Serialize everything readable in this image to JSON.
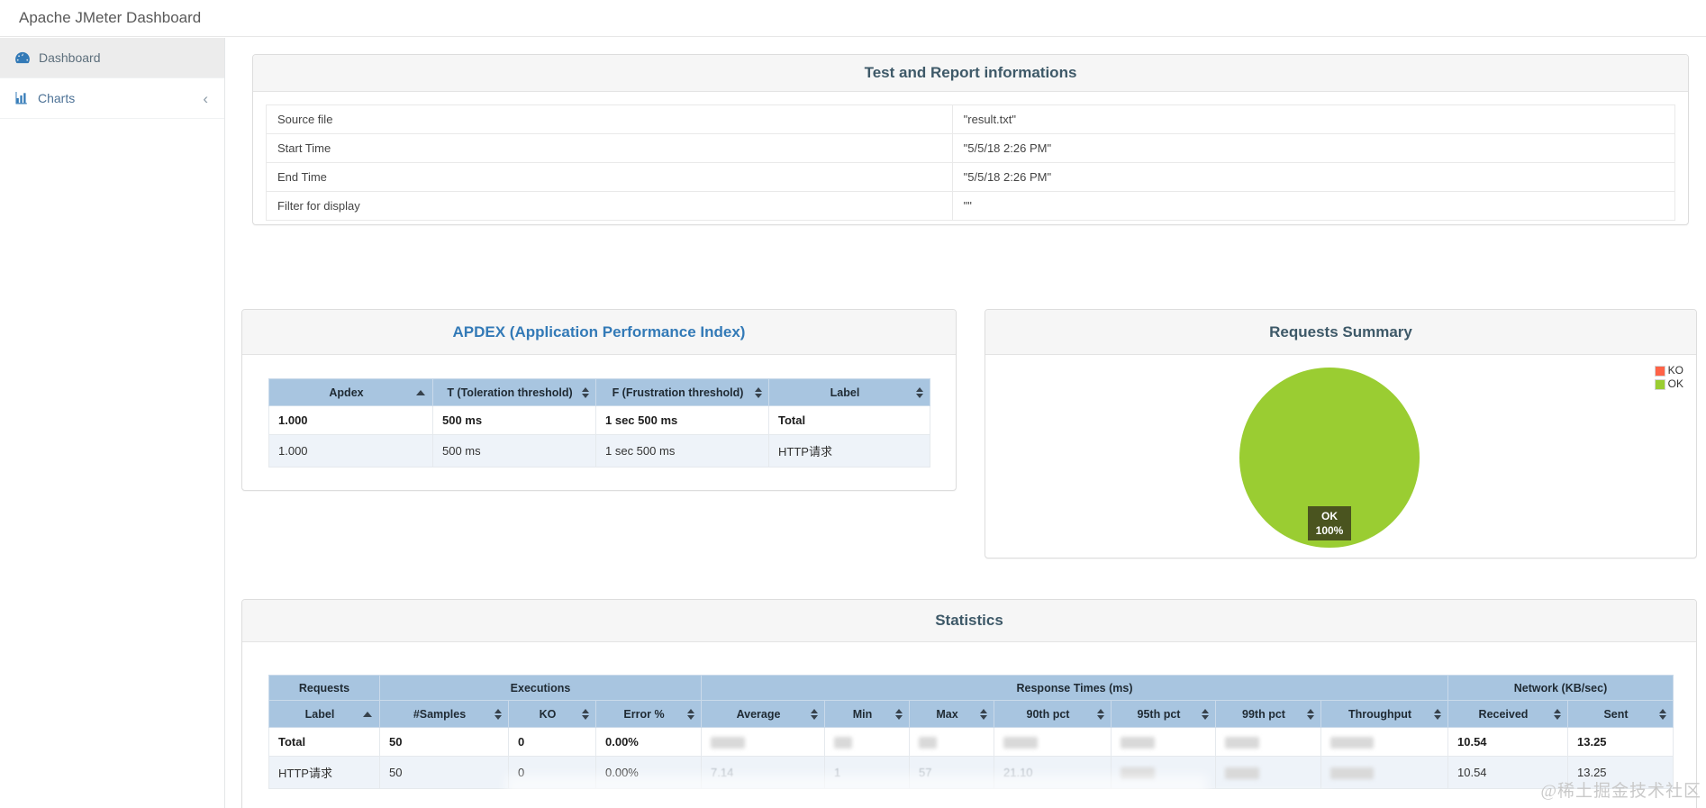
{
  "window": {
    "title": "Apache JMeter Dashboard"
  },
  "sidebar": {
    "items": [
      {
        "label": "Dashboard",
        "icon": "gauge-icon",
        "active": true
      },
      {
        "label": "Charts",
        "icon": "bar-chart-icon",
        "active": false,
        "collapse": "‹"
      }
    ]
  },
  "info_panel": {
    "title": "Test and Report informations",
    "rows": [
      {
        "label": "Source file",
        "value": "\"result.txt\""
      },
      {
        "label": "Start Time",
        "value": "\"5/5/18 2:26 PM\""
      },
      {
        "label": "End Time",
        "value": "\"5/5/18 2:26 PM\""
      },
      {
        "label": "Filter for display",
        "value": "\"\""
      }
    ]
  },
  "apdex_panel": {
    "title": "APDEX (Application Performance Index)",
    "columns": [
      {
        "label": "Apdex",
        "sort": "asc"
      },
      {
        "label": "T (Toleration threshold)",
        "sort": "both"
      },
      {
        "label": "F (Frustration threshold)",
        "sort": "both"
      },
      {
        "label": "Label",
        "sort": "both"
      }
    ],
    "rows": [
      {
        "bold": true,
        "striped": false,
        "cells": [
          "1.000",
          "500 ms",
          "1 sec 500 ms",
          "Total"
        ]
      },
      {
        "bold": false,
        "striped": true,
        "cells": [
          "1.000",
          "500 ms",
          "1 sec 500 ms",
          "HTTP请求"
        ]
      }
    ]
  },
  "requests_summary": {
    "title": "Requests Summary",
    "legend": [
      {
        "label": "KO",
        "color": "#FF6347"
      },
      {
        "label": "OK",
        "color": "#9ACD32"
      }
    ],
    "chart_data": {
      "type": "pie",
      "title": "Requests Summary",
      "slices": [
        {
          "label": "OK",
          "value": 100,
          "color": "#9ACD32"
        },
        {
          "label": "KO",
          "value": 0,
          "color": "#FF6347"
        }
      ],
      "unit": "%",
      "annotation": "OK 100%",
      "legend_position": "top-right"
    },
    "pie_label": {
      "line1": "OK",
      "line2": "100%"
    }
  },
  "statistics_panel": {
    "title": "Statistics",
    "groups": [
      {
        "label": "Requests",
        "span": 1
      },
      {
        "label": "Executions",
        "span": 3
      },
      {
        "label": "Response Times (ms)",
        "span": 7
      },
      {
        "label": "Network (KB/sec)",
        "span": 2
      }
    ],
    "columns": [
      {
        "label": "Label",
        "sort": "asc"
      },
      {
        "label": "#Samples",
        "sort": "both"
      },
      {
        "label": "KO",
        "sort": "both"
      },
      {
        "label": "Error %",
        "sort": "both"
      },
      {
        "label": "Average",
        "sort": "both"
      },
      {
        "label": "Min",
        "sort": "both"
      },
      {
        "label": "Max",
        "sort": "both"
      },
      {
        "label": "90th pct",
        "sort": "both"
      },
      {
        "label": "95th pct",
        "sort": "both"
      },
      {
        "label": "99th pct",
        "sort": "both"
      },
      {
        "label": "Throughput",
        "sort": "both"
      },
      {
        "label": "Received",
        "sort": "both"
      },
      {
        "label": "Sent",
        "sort": "both"
      }
    ],
    "rows": [
      {
        "bold": true,
        "striped": false,
        "cells": [
          {
            "text": "Total"
          },
          {
            "text": "50"
          },
          {
            "text": "0"
          },
          {
            "text": "0.00%"
          },
          {
            "text": "",
            "redacted": true
          },
          {
            "text": "",
            "redacted": true
          },
          {
            "text": "",
            "redacted": true
          },
          {
            "text": "",
            "redacted": true
          },
          {
            "text": "",
            "redacted": true
          },
          {
            "text": "",
            "redacted": true
          },
          {
            "text": "",
            "redacted": true
          },
          {
            "text": "10.54"
          },
          {
            "text": "13.25"
          }
        ]
      },
      {
        "bold": false,
        "striped": true,
        "cells": [
          {
            "text": "HTTP请求"
          },
          {
            "text": "50"
          },
          {
            "text": "0"
          },
          {
            "text": "0.00%"
          },
          {
            "text": "7.14",
            "redacted": true
          },
          {
            "text": "1",
            "redacted": true
          },
          {
            "text": "57",
            "redacted": true
          },
          {
            "text": "21.10",
            "redacted": true
          },
          {
            "text": "",
            "redacted": true
          },
          {
            "text": "",
            "redacted": true
          },
          {
            "text": "",
            "redacted": true
          },
          {
            "text": "10.54"
          },
          {
            "text": "13.25"
          }
        ]
      }
    ]
  },
  "watermark": "@稀土掘金技术社区"
}
